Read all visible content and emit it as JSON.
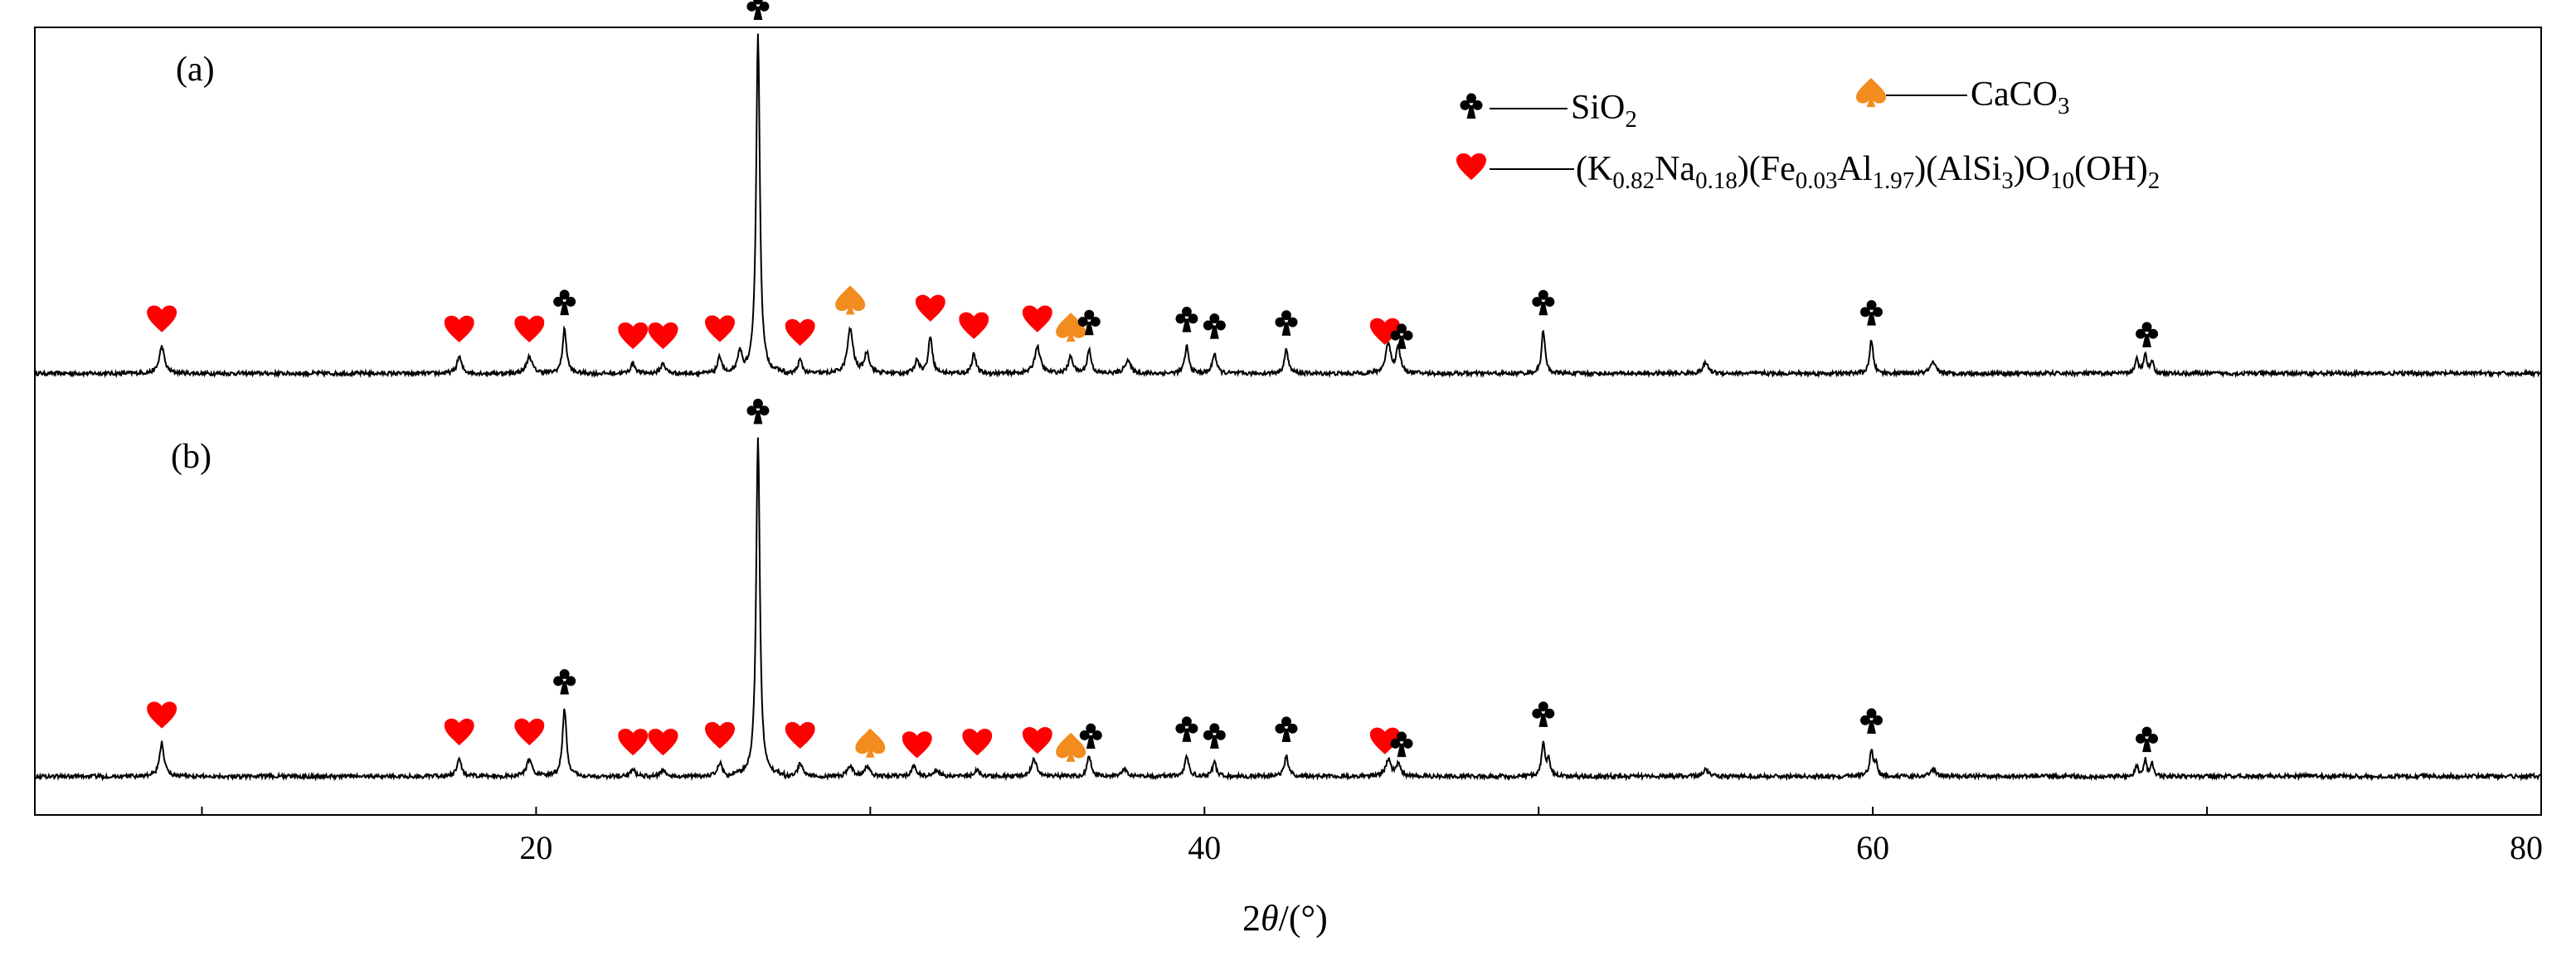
{
  "chart_data": {
    "type": "line",
    "title": "",
    "xlabel_prefix": "2",
    "xlabel_theta": "θ",
    "xlabel_suffix": "/(°)",
    "xlim": [
      5,
      80
    ],
    "xticks": [
      "20",
      "40",
      "60",
      "80"
    ],
    "ylabel": "",
    "colors": {
      "line": "#000000",
      "sio2": "#000000",
      "mica": "#ff0000",
      "caco3": "#f28c1e"
    },
    "legend": {
      "placement": "top-right",
      "sio2_text": "SiO",
      "sio2_sub": "2",
      "caco3_text": "CaCO",
      "caco3_sub": "3",
      "mica_parts": [
        {
          "t": "(K",
          "s": false
        },
        {
          "t": "0.82",
          "s": true
        },
        {
          "t": "Na",
          "s": false
        },
        {
          "t": "0.18",
          "s": true
        },
        {
          "t": ")(Fe",
          "s": false
        },
        {
          "t": "0.03",
          "s": true
        },
        {
          "t": "Al",
          "s": false
        },
        {
          "t": "1.97",
          "s": true
        },
        {
          "t": ")(AlSi",
          "s": false
        },
        {
          "t": "3",
          "s": true
        },
        {
          "t": ")O",
          "s": false
        },
        {
          "t": "10",
          "s": true
        },
        {
          "t": "(OH)",
          "s": false
        },
        {
          "t": "2",
          "s": true
        }
      ]
    },
    "series": [
      {
        "name": "(a)",
        "peaks": [
          {
            "x": 8.8,
            "h": 0.08,
            "w": 0.09
          },
          {
            "x": 17.7,
            "h": 0.05,
            "w": 0.08
          },
          {
            "x": 19.8,
            "h": 0.05,
            "w": 0.1
          },
          {
            "x": 20.85,
            "h": 0.13,
            "w": 0.07
          },
          {
            "x": 22.9,
            "h": 0.03,
            "w": 0.08
          },
          {
            "x": 23.8,
            "h": 0.03,
            "w": 0.08
          },
          {
            "x": 25.5,
            "h": 0.05,
            "w": 0.08
          },
          {
            "x": 26.1,
            "h": 0.06,
            "w": 0.07
          },
          {
            "x": 26.64,
            "h": 1.0,
            "w": 0.065
          },
          {
            "x": 27.9,
            "h": 0.04,
            "w": 0.08
          },
          {
            "x": 29.4,
            "h": 0.13,
            "w": 0.1
          },
          {
            "x": 29.9,
            "h": 0.06,
            "w": 0.09
          },
          {
            "x": 31.4,
            "h": 0.04,
            "w": 0.08
          },
          {
            "x": 31.8,
            "h": 0.11,
            "w": 0.07
          },
          {
            "x": 33.1,
            "h": 0.06,
            "w": 0.07
          },
          {
            "x": 35.0,
            "h": 0.08,
            "w": 0.1
          },
          {
            "x": 36.0,
            "h": 0.05,
            "w": 0.08
          },
          {
            "x": 36.55,
            "h": 0.07,
            "w": 0.07
          },
          {
            "x": 37.7,
            "h": 0.04,
            "w": 0.1
          },
          {
            "x": 39.47,
            "h": 0.08,
            "w": 0.07
          },
          {
            "x": 40.3,
            "h": 0.06,
            "w": 0.07
          },
          {
            "x": 42.45,
            "h": 0.07,
            "w": 0.07
          },
          {
            "x": 45.5,
            "h": 0.09,
            "w": 0.09
          },
          {
            "x": 45.8,
            "h": 0.08,
            "w": 0.07
          },
          {
            "x": 50.14,
            "h": 0.13,
            "w": 0.06
          },
          {
            "x": 55.0,
            "h": 0.03,
            "w": 0.1
          },
          {
            "x": 59.96,
            "h": 0.1,
            "w": 0.06
          },
          {
            "x": 61.8,
            "h": 0.03,
            "w": 0.1
          },
          {
            "x": 67.9,
            "h": 0.04,
            "w": 0.06
          },
          {
            "x": 68.15,
            "h": 0.06,
            "w": 0.05
          },
          {
            "x": 68.35,
            "h": 0.04,
            "w": 0.05
          }
        ],
        "markers": [
          {
            "x": 8.8,
            "h": 0.08,
            "type": "mica"
          },
          {
            "x": 17.7,
            "h": 0.05,
            "type": "mica"
          },
          {
            "x": 19.8,
            "h": 0.05,
            "type": "mica"
          },
          {
            "x": 20.85,
            "h": 0.13,
            "type": "sio2"
          },
          {
            "x": 22.9,
            "h": 0.03,
            "type": "mica"
          },
          {
            "x": 23.8,
            "h": 0.03,
            "type": "mica"
          },
          {
            "x": 25.5,
            "h": 0.05,
            "type": "mica"
          },
          {
            "x": 26.64,
            "h": 1.0,
            "type": "sio2"
          },
          {
            "x": 27.9,
            "h": 0.04,
            "type": "mica"
          },
          {
            "x": 29.4,
            "h": 0.13,
            "type": "caco3"
          },
          {
            "x": 31.8,
            "h": 0.11,
            "type": "mica"
          },
          {
            "x": 33.1,
            "h": 0.06,
            "type": "mica"
          },
          {
            "x": 35.0,
            "h": 0.08,
            "type": "mica"
          },
          {
            "x": 36.0,
            "h": 0.05,
            "type": "caco3"
          },
          {
            "x": 36.55,
            "h": 0.07,
            "type": "sio2"
          },
          {
            "x": 39.47,
            "h": 0.08,
            "type": "sio2"
          },
          {
            "x": 40.3,
            "h": 0.06,
            "type": "sio2"
          },
          {
            "x": 42.45,
            "h": 0.07,
            "type": "sio2"
          },
          {
            "x": 45.4,
            "h": 0.09,
            "type": "mica"
          },
          {
            "x": 45.9,
            "h": 0.08,
            "type": "sio2"
          },
          {
            "x": 50.14,
            "h": 0.13,
            "type": "sio2"
          },
          {
            "x": 59.96,
            "h": 0.1,
            "type": "sio2"
          },
          {
            "x": 68.2,
            "h": 0.06,
            "type": "sio2"
          }
        ]
      },
      {
        "name": "(b)",
        "peaks": [
          {
            "x": 8.8,
            "h": 0.1,
            "w": 0.08
          },
          {
            "x": 17.7,
            "h": 0.05,
            "w": 0.08
          },
          {
            "x": 19.8,
            "h": 0.05,
            "w": 0.1
          },
          {
            "x": 20.85,
            "h": 0.2,
            "w": 0.07
          },
          {
            "x": 22.9,
            "h": 0.02,
            "w": 0.08
          },
          {
            "x": 23.8,
            "h": 0.02,
            "w": 0.08
          },
          {
            "x": 25.5,
            "h": 0.04,
            "w": 0.08
          },
          {
            "x": 26.64,
            "h": 1.0,
            "w": 0.065
          },
          {
            "x": 27.9,
            "h": 0.04,
            "w": 0.08
          },
          {
            "x": 29.4,
            "h": 0.03,
            "w": 0.09
          },
          {
            "x": 29.9,
            "h": 0.03,
            "w": 0.09
          },
          {
            "x": 31.3,
            "h": 0.03,
            "w": 0.08
          },
          {
            "x": 32.0,
            "h": 0.02,
            "w": 0.08
          },
          {
            "x": 33.2,
            "h": 0.02,
            "w": 0.08
          },
          {
            "x": 34.9,
            "h": 0.05,
            "w": 0.1
          },
          {
            "x": 36.55,
            "h": 0.06,
            "w": 0.07
          },
          {
            "x": 37.6,
            "h": 0.02,
            "w": 0.1
          },
          {
            "x": 39.47,
            "h": 0.06,
            "w": 0.07
          },
          {
            "x": 40.3,
            "h": 0.04,
            "w": 0.07
          },
          {
            "x": 42.45,
            "h": 0.06,
            "w": 0.07
          },
          {
            "x": 45.5,
            "h": 0.05,
            "w": 0.09
          },
          {
            "x": 45.8,
            "h": 0.04,
            "w": 0.07
          },
          {
            "x": 50.14,
            "h": 0.1,
            "w": 0.06
          },
          {
            "x": 50.3,
            "h": 0.05,
            "w": 0.05
          },
          {
            "x": 55.0,
            "h": 0.02,
            "w": 0.1
          },
          {
            "x": 59.96,
            "h": 0.08,
            "w": 0.06
          },
          {
            "x": 60.1,
            "h": 0.04,
            "w": 0.05
          },
          {
            "x": 61.8,
            "h": 0.02,
            "w": 0.1
          },
          {
            "x": 67.9,
            "h": 0.03,
            "w": 0.06
          },
          {
            "x": 68.15,
            "h": 0.05,
            "w": 0.05
          },
          {
            "x": 68.35,
            "h": 0.04,
            "w": 0.05
          }
        ],
        "markers": [
          {
            "x": 8.8,
            "h": 0.1,
            "type": "mica"
          },
          {
            "x": 17.7,
            "h": 0.05,
            "type": "mica"
          },
          {
            "x": 19.8,
            "h": 0.05,
            "type": "mica"
          },
          {
            "x": 20.85,
            "h": 0.2,
            "type": "sio2"
          },
          {
            "x": 22.9,
            "h": 0.02,
            "type": "mica"
          },
          {
            "x": 23.8,
            "h": 0.02,
            "type": "mica"
          },
          {
            "x": 25.5,
            "h": 0.04,
            "type": "mica"
          },
          {
            "x": 26.64,
            "h": 1.0,
            "type": "sio2"
          },
          {
            "x": 27.9,
            "h": 0.04,
            "type": "mica"
          },
          {
            "x": 30.0,
            "h": 0.04,
            "type": "caco3"
          },
          {
            "x": 31.4,
            "h": 0.03,
            "type": "mica"
          },
          {
            "x": 33.2,
            "h": 0.02,
            "type": "mica"
          },
          {
            "x": 35.0,
            "h": 0.05,
            "type": "mica"
          },
          {
            "x": 36.0,
            "h": 0.02,
            "type": "caco3"
          },
          {
            "x": 36.6,
            "h": 0.06,
            "type": "sio2"
          },
          {
            "x": 39.47,
            "h": 0.06,
            "type": "sio2"
          },
          {
            "x": 40.3,
            "h": 0.04,
            "type": "sio2"
          },
          {
            "x": 42.45,
            "h": 0.06,
            "type": "sio2"
          },
          {
            "x": 45.4,
            "h": 0.05,
            "type": "mica"
          },
          {
            "x": 45.9,
            "h": 0.04,
            "type": "sio2"
          },
          {
            "x": 50.14,
            "h": 0.1,
            "type": "sio2"
          },
          {
            "x": 59.96,
            "h": 0.08,
            "type": "sio2"
          },
          {
            "x": 68.2,
            "h": 0.05,
            "type": "sio2"
          }
        ]
      }
    ]
  }
}
